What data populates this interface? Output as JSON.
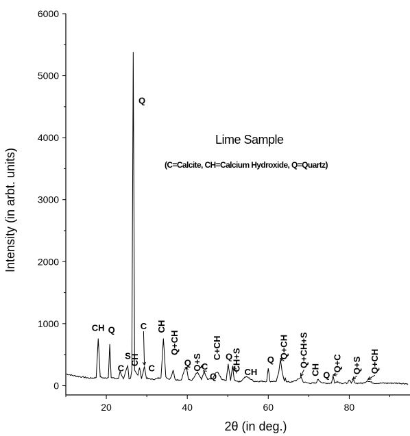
{
  "chart_data": {
    "type": "line",
    "title": "Lime Sample",
    "subtitle": "(C=Calcite, CH=Calcium Hydroxide, Q=Quartz)",
    "xlabel": "2θ (in deg.)",
    "ylabel": "Intensity (in arbt. units)",
    "xlim": [
      10,
      95
    ],
    "ylim": [
      -150,
      6000
    ],
    "x_ticks": [
      20,
      40,
      60,
      80
    ],
    "y_ticks": [
      0,
      1000,
      2000,
      3000,
      4000,
      5000,
      6000
    ],
    "grid": false,
    "series": [
      {
        "x": [
          10,
          12,
          14,
          16,
          17.5,
          18.0,
          18.5,
          19.5,
          20.5,
          20.85,
          21.2,
          22.5,
          23.0,
          23.4,
          24.2,
          25.3,
          25.6,
          26.0,
          26.3,
          26.65,
          27.0,
          27.8,
          28.2,
          28.7,
          29.4,
          29.9,
          31.5,
          33.5,
          34.1,
          34.7,
          35.5,
          36.0,
          36.5,
          37.0,
          38.5,
          39.4,
          39.8,
          40.3,
          41.2,
          42.2,
          42.5,
          43.5,
          44.1,
          45.0,
          46.3,
          47.1,
          47.6,
          48.5,
          49.6,
          50.1,
          50.7,
          51.2,
          51.6,
          53.0,
          54.3,
          54.8,
          56.5,
          59.6,
          60.0,
          60.4,
          62.0,
          62.6,
          63.0,
          63.4,
          64.0,
          64.2,
          64.5,
          66.0,
          67.6,
          68.1,
          68.6,
          70.0,
          71.8,
          72.2,
          73.5,
          75.6,
          76.0,
          76.4,
          77.0,
          78.0,
          79.5,
          80.0,
          80.5,
          81.0,
          81.5,
          82.5,
          83.5,
          84.5,
          86.0,
          88.0,
          90.0,
          92.0,
          94.5
        ],
        "y": [
          190,
          160,
          140,
          120,
          130,
          760,
          140,
          120,
          130,
          670,
          130,
          110,
          115,
          230,
          110,
          320,
          110,
          120,
          250,
          5380,
          250,
          170,
          290,
          110,
          310,
          120,
          100,
          130,
          760,
          140,
          100,
          140,
          250,
          100,
          90,
          270,
          280,
          100,
          90,
          200,
          220,
          100,
          220,
          100,
          110,
          210,
          210,
          100,
          80,
          350,
          80,
          320,
          90,
          60,
          140,
          140,
          70,
          70,
          280,
          70,
          70,
          220,
          420,
          230,
          70,
          130,
          60,
          60,
          110,
          140,
          60,
          40,
          40,
          100,
          40,
          40,
          160,
          40,
          70,
          40,
          40,
          90,
          40,
          90,
          40,
          40,
          40,
          80,
          40,
          40,
          40,
          40,
          30
        ]
      }
    ],
    "annotations": [
      {
        "text": "CH",
        "x": 18.0,
        "y": 880,
        "vertical": false
      },
      {
        "text": "Q",
        "x": 21.3,
        "y": 850,
        "vertical": false
      },
      {
        "text": "C",
        "x": 23.6,
        "y": 230,
        "vertical": false
      },
      {
        "text": "S",
        "x": 25.3,
        "y": 430,
        "vertical": false
      },
      {
        "text": "CH",
        "x": 27.8,
        "y": 310,
        "vertical": true
      },
      {
        "text": "C",
        "x": 29.2,
        "y": 910,
        "vertical": false,
        "arrow_to": [
          29.4,
          330
        ]
      },
      {
        "text": "C",
        "x": 31.2,
        "y": 230,
        "vertical": false
      },
      {
        "text": "Q",
        "x": 28.8,
        "y": 4550,
        "vertical": false
      },
      {
        "text": "CH",
        "x": 34.4,
        "y": 850,
        "vertical": true
      },
      {
        "text": "Q+CH",
        "x": 37.6,
        "y": 490,
        "vertical": true
      },
      {
        "text": "Q",
        "x": 40.1,
        "y": 320,
        "vertical": false,
        "arrow_to": [
          39.5,
          290
        ]
      },
      {
        "text": "Q+S",
        "x": 43.2,
        "y": 230,
        "vertical": true
      },
      {
        "text": "C",
        "x": 44.3,
        "y": 260,
        "vertical": false,
        "arrow_to": [
          44.0,
          240
        ]
      },
      {
        "text": "C+CH",
        "x": 48.1,
        "y": 410,
        "vertical": true
      },
      {
        "text": "Q",
        "x": 46.4,
        "y": 100,
        "vertical": false
      },
      {
        "text": "Q",
        "x": 50.3,
        "y": 420,
        "vertical": false
      },
      {
        "text": "CH+S",
        "x": 52.9,
        "y": 220,
        "vertical": true,
        "arrow_to": [
          51.5,
          300
        ]
      },
      {
        "text": "CH",
        "x": 55.7,
        "y": 170,
        "vertical": false
      },
      {
        "text": "Q",
        "x": 60.6,
        "y": 370,
        "vertical": false
      },
      {
        "text": "Q+CH",
        "x": 64.6,
        "y": 420,
        "vertical": true,
        "arrow_to": [
          63.0,
          440
        ]
      },
      {
        "text": "Q+CH+S",
        "x": 69.5,
        "y": 280,
        "vertical": true,
        "arrow_to": [
          68.0,
          150
        ]
      },
      {
        "text": "CH",
        "x": 72.4,
        "y": 150,
        "vertical": true
      },
      {
        "text": "Q",
        "x": 74.4,
        "y": 120,
        "vertical": false
      },
      {
        "text": "Q+C",
        "x": 77.8,
        "y": 210,
        "vertical": true,
        "arrow_to": [
          76.0,
          170
        ]
      },
      {
        "text": "Q+S",
        "x": 82.6,
        "y": 180,
        "vertical": true,
        "arrow_to": [
          80.8,
          100
        ]
      },
      {
        "text": "Q+CH",
        "x": 87.0,
        "y": 190,
        "vertical": true,
        "arrow_to": [
          84.6,
          100
        ]
      }
    ]
  }
}
